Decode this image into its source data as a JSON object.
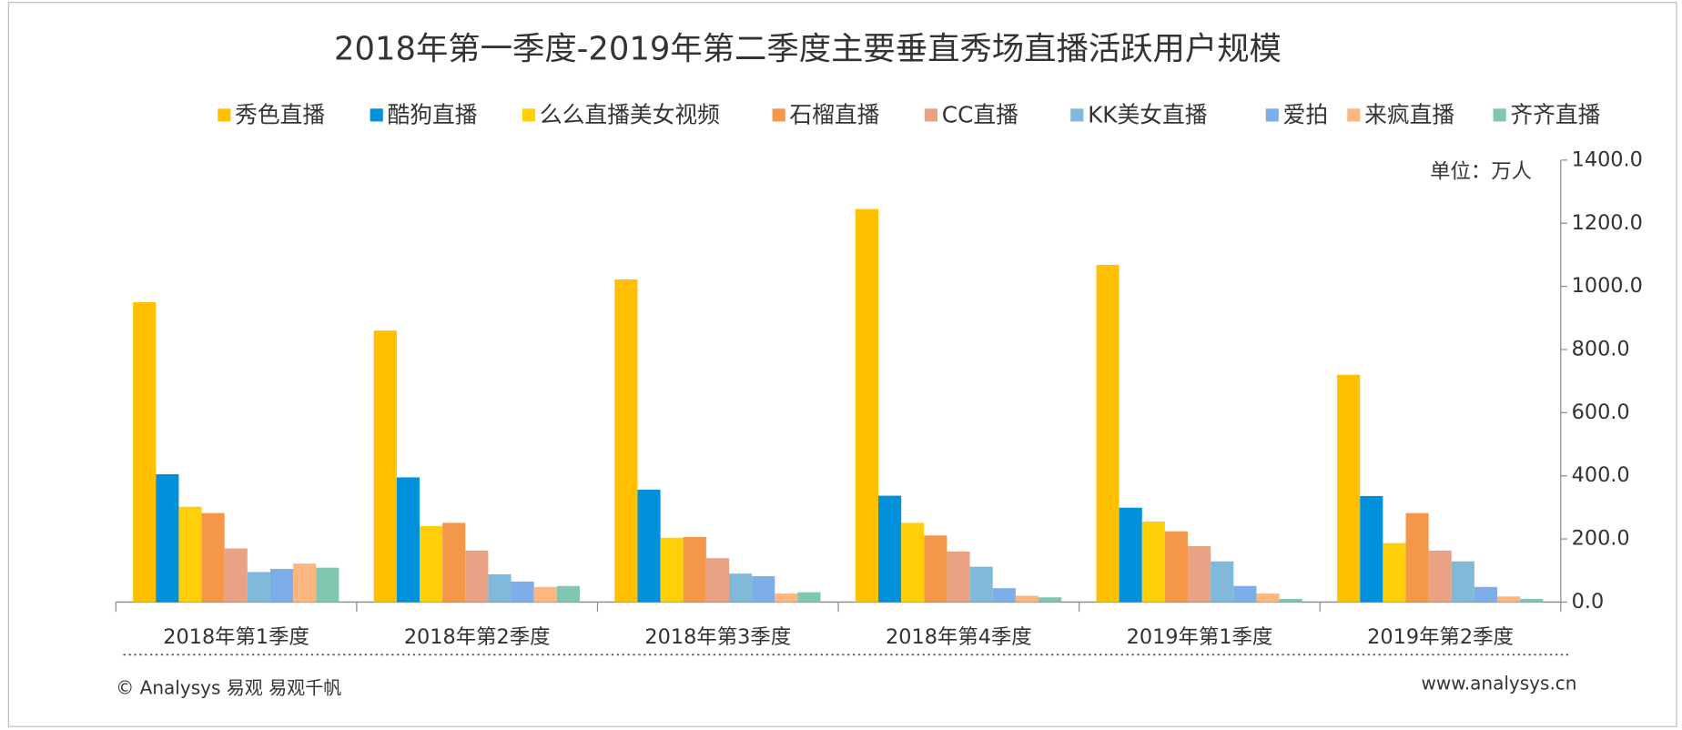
{
  "chart_data": {
    "type": "bar",
    "title": "2018年第一季度-2019年第二季度主要垂直秀场直播活跃用户规模",
    "unit_label": "单位：万人",
    "categories": [
      "2018年第1季度",
      "2018年第2季度",
      "2018年第3季度",
      "2018年第4季度",
      "2019年第1季度",
      "2019年第2季度"
    ],
    "series": [
      {
        "name": "秀色直播",
        "color": "#ffc000",
        "values": [
          950,
          860,
          1022,
          1245,
          1068,
          720
        ]
      },
      {
        "name": "酷狗直播",
        "color": "#0091da",
        "values": [
          405,
          395,
          356,
          337,
          299,
          336
        ]
      },
      {
        "name": "么么直播美女视频",
        "color": "#ffcf0a",
        "values": [
          302,
          241,
          204,
          251,
          255,
          187
        ]
      },
      {
        "name": "石榴直播",
        "color": "#f5974a",
        "values": [
          282,
          251,
          206,
          211,
          224,
          282
        ]
      },
      {
        "name": "CC直播",
        "color": "#e9a284",
        "values": [
          170,
          163,
          139,
          160,
          177,
          163
        ]
      },
      {
        "name": "KK美女直播",
        "color": "#80b9d9",
        "values": [
          95,
          88,
          90,
          112,
          129,
          129
        ]
      },
      {
        "name": "爱拍",
        "color": "#7eaee8",
        "values": [
          105,
          65,
          82,
          44,
          51,
          48
        ]
      },
      {
        "name": "来疯直播",
        "color": "#fdb680",
        "values": [
          122,
          48,
          27,
          20,
          27,
          18
        ]
      },
      {
        "name": "齐齐直播",
        "color": "#80c6b1",
        "values": [
          109,
          51,
          31,
          15,
          10,
          10
        ]
      }
    ],
    "ylim": [
      0,
      1400
    ],
    "yticks": [
      {
        "value": 0,
        "label": "0.0"
      },
      {
        "value": 200,
        "label": "200.0"
      },
      {
        "value": 400,
        "label": "400.0"
      },
      {
        "value": 600,
        "label": "600.0"
      },
      {
        "value": 800,
        "label": "800.0"
      },
      {
        "value": 1000,
        "label": "1000.0"
      },
      {
        "value": 1200,
        "label": "1200.0"
      },
      {
        "value": 1400,
        "label": "1400.0"
      }
    ],
    "footer_left": "© Analysys 易观 易观千帆",
    "footer_right": "www.analysys.cn"
  }
}
